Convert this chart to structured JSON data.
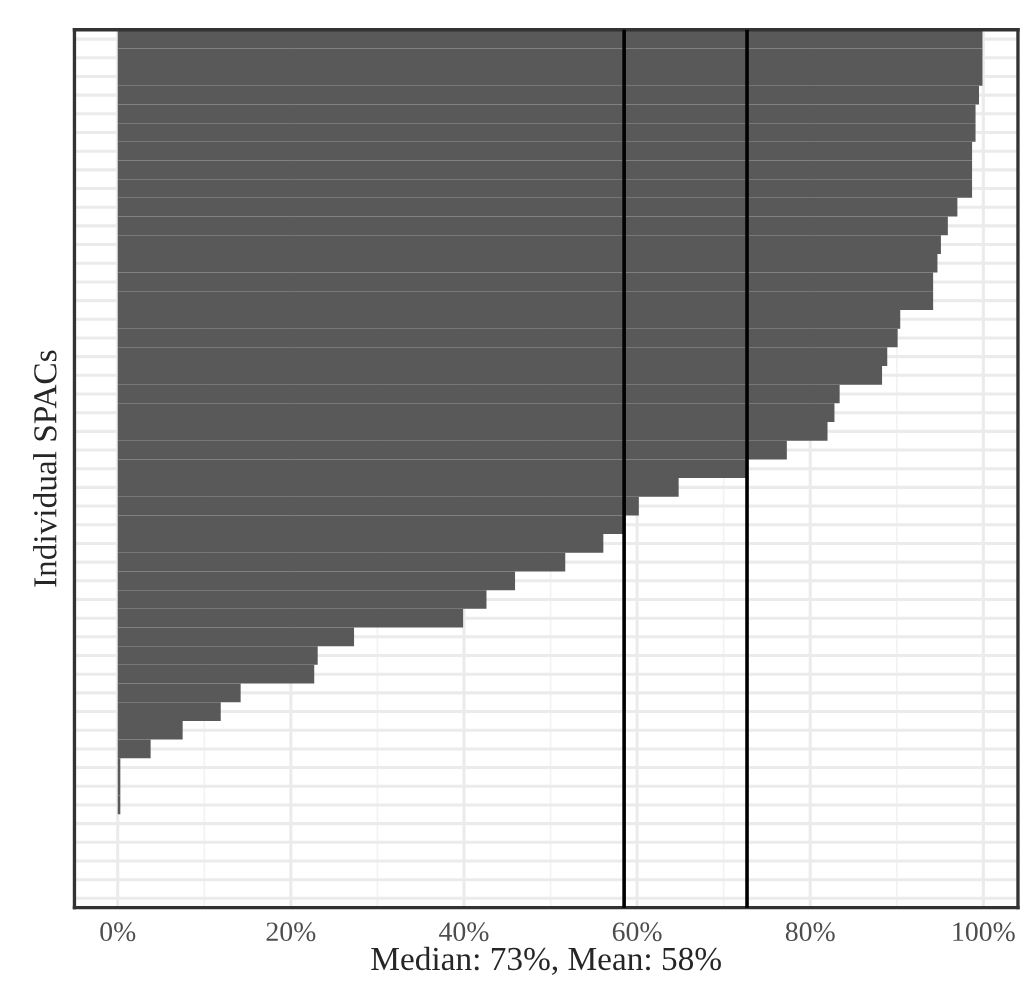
{
  "chart_data": {
    "type": "bar",
    "orientation": "horizontal",
    "xlabel": "Median: 73%, Mean: 58%",
    "ylabel": "Individual SPACs",
    "categories": [
      null,
      null,
      null,
      null,
      null,
      null,
      null,
      null,
      null,
      null,
      null,
      null,
      null,
      null,
      null,
      null,
      null,
      null,
      null,
      null,
      null,
      null,
      null,
      null,
      null,
      null,
      null,
      null,
      null,
      null,
      null,
      null,
      null,
      null,
      null,
      null,
      null,
      null,
      null,
      null,
      null,
      null,
      null,
      null,
      null,
      null,
      null
    ],
    "values": [
      99.9,
      99.9,
      99.9,
      99.5,
      99.1,
      99.1,
      98.7,
      98.7,
      98.7,
      97.0,
      95.9,
      95.1,
      94.7,
      94.2,
      94.2,
      90.4,
      90.1,
      88.9,
      88.3,
      83.4,
      82.8,
      82.0,
      77.3,
      72.6,
      64.8,
      60.2,
      58.4,
      56.1,
      51.7,
      45.9,
      42.6,
      39.9,
      27.3,
      23.1,
      22.7,
      14.2,
      11.9,
      7.5,
      3.8,
      0.3,
      0.3,
      0.3,
      0,
      0,
      0,
      0,
      0
    ],
    "color": "#595959",
    "xlim": [
      -5,
      104
    ],
    "xticks": [
      {
        "value": 0,
        "label": "0%"
      },
      {
        "value": 20,
        "label": "20%"
      },
      {
        "value": 40,
        "label": "40%"
      },
      {
        "value": 60,
        "label": "60%"
      },
      {
        "value": 80,
        "label": "80%"
      },
      {
        "value": 100,
        "label": "100%"
      }
    ],
    "ref_lines": [
      {
        "axis": "x",
        "value": 58.5,
        "color": "#000000"
      },
      {
        "axis": "x",
        "value": 72.7,
        "color": "#000000"
      }
    ],
    "grid": true,
    "tick_labels": "x"
  }
}
